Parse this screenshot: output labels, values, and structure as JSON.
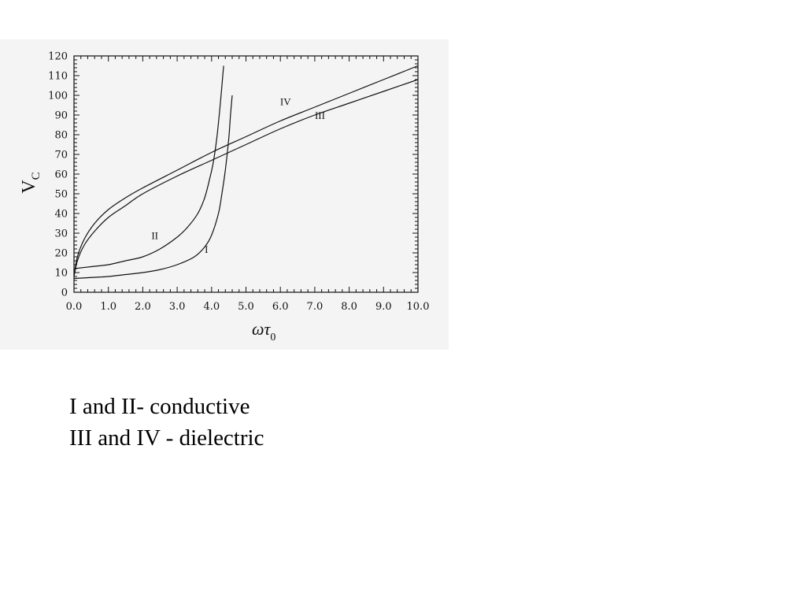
{
  "chart_data": {
    "type": "line",
    "xlabel": {
      "main": "ωτ",
      "sub": "0"
    },
    "ylabel": {
      "main": "V",
      "sub": "C"
    },
    "xlim": [
      0,
      10
    ],
    "ylim": [
      0,
      120
    ],
    "x_ticks": [
      "0.0",
      "1.0",
      "2.0",
      "3.0",
      "4.0",
      "5.0",
      "6.0",
      "7.0",
      "8.0",
      "9.0",
      "10.0"
    ],
    "y_ticks": [
      "0",
      "10",
      "20",
      "30",
      "40",
      "50",
      "60",
      "70",
      "80",
      "90",
      "100",
      "110",
      "120"
    ],
    "series": [
      {
        "name": "I",
        "label_at": [
          3.85,
          20
        ],
        "points": [
          [
            0.0,
            7
          ],
          [
            0.5,
            7.5
          ],
          [
            1.0,
            8
          ],
          [
            1.5,
            9
          ],
          [
            2.0,
            10
          ],
          [
            2.5,
            11.5
          ],
          [
            3.0,
            14
          ],
          [
            3.5,
            18
          ],
          [
            3.8,
            23
          ],
          [
            4.0,
            29
          ],
          [
            4.2,
            40
          ],
          [
            4.3,
            50
          ],
          [
            4.4,
            62
          ],
          [
            4.5,
            78
          ],
          [
            4.55,
            90
          ],
          [
            4.6,
            100
          ]
        ]
      },
      {
        "name": "II",
        "label_at": [
          2.35,
          27
        ],
        "points": [
          [
            0.0,
            12
          ],
          [
            0.5,
            13
          ],
          [
            1.0,
            14
          ],
          [
            1.5,
            16
          ],
          [
            2.0,
            18
          ],
          [
            2.5,
            22
          ],
          [
            3.0,
            28
          ],
          [
            3.3,
            33
          ],
          [
            3.6,
            40
          ],
          [
            3.8,
            48
          ],
          [
            3.95,
            58
          ],
          [
            4.05,
            66
          ],
          [
            4.15,
            78
          ],
          [
            4.25,
            95
          ],
          [
            4.35,
            115
          ]
        ]
      },
      {
        "name": "III",
        "label_at": [
          7.15,
          88
        ],
        "points": [
          [
            0.0,
            8
          ],
          [
            0.1,
            16
          ],
          [
            0.3,
            24
          ],
          [
            0.6,
            31
          ],
          [
            1.0,
            38
          ],
          [
            1.5,
            44
          ],
          [
            2.0,
            50
          ],
          [
            3.0,
            59
          ],
          [
            4.0,
            67
          ],
          [
            5.0,
            75
          ],
          [
            6.0,
            83
          ],
          [
            7.0,
            90
          ],
          [
            8.0,
            96
          ],
          [
            9.0,
            102
          ],
          [
            10.0,
            108
          ]
        ]
      },
      {
        "name": "IV",
        "label_at": [
          6.15,
          95
        ],
        "points": [
          [
            0.0,
            8
          ],
          [
            0.1,
            18
          ],
          [
            0.3,
            27
          ],
          [
            0.6,
            35
          ],
          [
            1.0,
            42
          ],
          [
            1.5,
            48
          ],
          [
            2.0,
            53
          ],
          [
            3.0,
            62
          ],
          [
            4.0,
            71
          ],
          [
            5.0,
            79
          ],
          [
            6.0,
            87
          ],
          [
            7.0,
            94
          ],
          [
            8.0,
            101
          ],
          [
            9.0,
            108
          ],
          [
            10.0,
            115
          ]
        ]
      }
    ]
  },
  "caption": {
    "line1": "I and II- conductive",
    "line2": "III and IV - dielectric"
  }
}
